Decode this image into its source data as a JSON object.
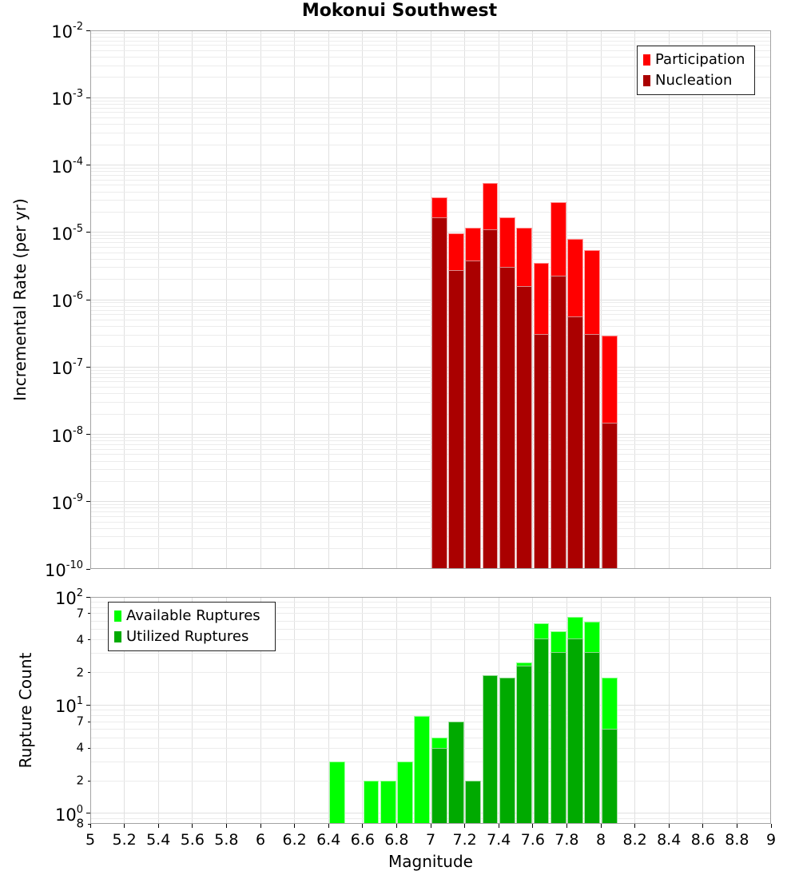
{
  "title": "Mokonui Southwest",
  "colors": {
    "participation": "#ff0000",
    "nucleation": "#aa0000",
    "available": "#00ff00",
    "utilized": "#00aa00",
    "grid_minor": "#ececec",
    "grid_major": "#e0e0e0",
    "frame": "#a3a3a3"
  },
  "x_tick_labels": [
    "5",
    "5.2",
    "5.4",
    "5.6",
    "5.8",
    "6",
    "6.2",
    "6.4",
    "6.6",
    "6.8",
    "7",
    "7.2",
    "7.4",
    "7.6",
    "7.8",
    "8",
    "8.2",
    "8.4",
    "8.6",
    "8.8",
    "9"
  ],
  "chart_data": [
    {
      "type": "bar",
      "title": "Mokonui Southwest",
      "ylabel": "Incremental Rate (per yr)",
      "xlabel": "",
      "xlim": [
        5,
        9
      ],
      "ylim": [
        1e-10,
        0.01
      ],
      "ylog_range": [
        -10,
        -2
      ],
      "grid": true,
      "bin_width": 0.1,
      "legend_position": "top-right",
      "y_major_exponents": [
        -2,
        -3,
        -4,
        -5,
        -6,
        -7,
        -8,
        -9,
        -10
      ],
      "y_minor_tick_labels": [],
      "show_x_tick_labels": false,
      "series": [
        {
          "name": "Participation",
          "color": "#ff0000",
          "x": [
            7.05,
            7.15,
            7.25,
            7.35,
            7.45,
            7.55,
            7.65,
            7.75,
            7.85,
            7.95,
            8.05
          ],
          "values": [
            3.3e-05,
            9.6e-06,
            1.17e-05,
            5.4e-05,
            1.67e-05,
            1.17e-05,
            3.5e-06,
            2.8e-05,
            8e-06,
            5.4e-06,
            2.9e-07
          ]
        },
        {
          "name": "Nucleation",
          "color": "#aa0000",
          "x": [
            7.05,
            7.15,
            7.25,
            7.35,
            7.45,
            7.55,
            7.65,
            7.75,
            7.85,
            7.95,
            8.05
          ],
          "values": [
            1.65e-05,
            2.75e-06,
            3.8e-06,
            1.1e-05,
            3.1e-06,
            1.6e-06,
            3.1e-07,
            2.3e-06,
            5.6e-07,
            3.1e-07,
            1.5e-08
          ]
        }
      ]
    },
    {
      "type": "bar",
      "title": "",
      "ylabel": "Rupture Count",
      "xlabel": "Magnitude",
      "xlim": [
        5,
        9
      ],
      "ylim": [
        0.8,
        100
      ],
      "ylog_range": [
        -0.09691,
        2
      ],
      "grid": true,
      "bin_width": 0.1,
      "legend_position": "top-left",
      "y_major_exponents": [
        2,
        1,
        0
      ],
      "y_minor_tick_labels": [
        {
          "label": "7",
          "value": 70
        },
        {
          "label": "4",
          "value": 40
        },
        {
          "label": "2",
          "value": 20
        },
        {
          "label": "7",
          "value": 7
        },
        {
          "label": "4",
          "value": 4
        },
        {
          "label": "2",
          "value": 2
        },
        {
          "label": "8",
          "value": 0.8
        }
      ],
      "show_x_tick_labels": true,
      "series": [
        {
          "name": "Available Ruptures",
          "color": "#00ff00",
          "x": [
            6.45,
            6.65,
            6.75,
            6.85,
            6.95,
            7.05,
            7.15,
            7.25,
            7.35,
            7.45,
            7.55,
            7.65,
            7.75,
            7.85,
            7.95,
            8.05
          ],
          "values": [
            3,
            2,
            2,
            3,
            8,
            5,
            7,
            2,
            19,
            18,
            25,
            57,
            48,
            65,
            59,
            18
          ]
        },
        {
          "name": "Utilized Ruptures",
          "color": "#00aa00",
          "x": [
            7.05,
            7.15,
            7.25,
            7.35,
            7.45,
            7.55,
            7.65,
            7.75,
            7.85,
            7.95,
            8.05
          ],
          "values": [
            4,
            7,
            2,
            19,
            18,
            23,
            41,
            31,
            41,
            31,
            6
          ]
        }
      ]
    }
  ]
}
